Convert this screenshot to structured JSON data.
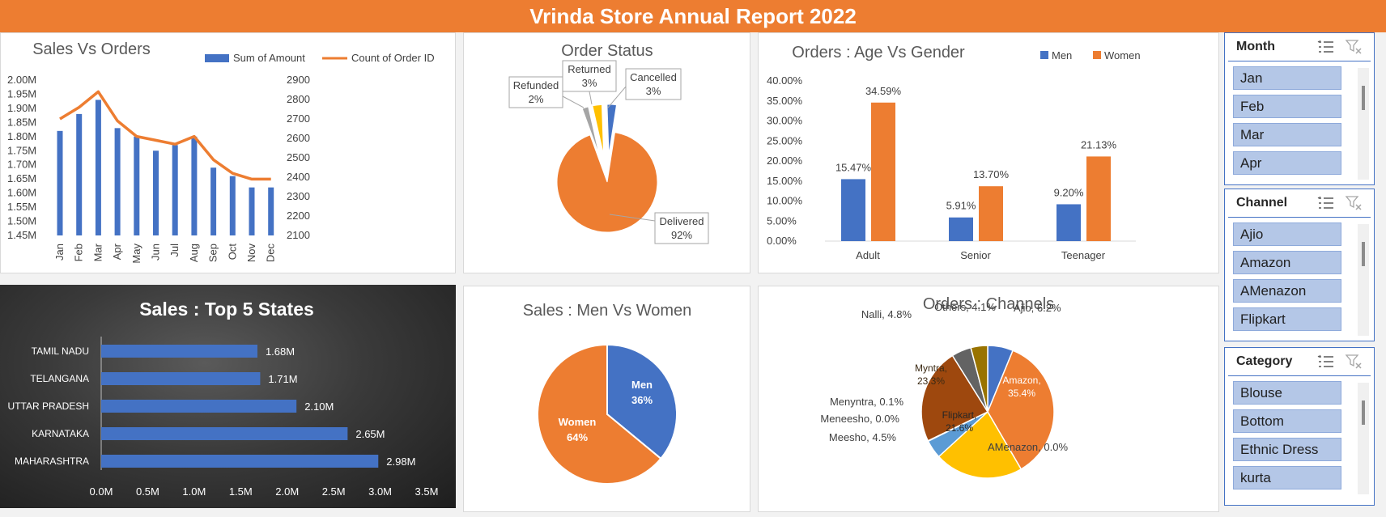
{
  "title": "Vrinda Store Annual Report 2022",
  "colors": {
    "orange": "#ed7d31",
    "blue": "#4472c4",
    "yellow": "#ffc000",
    "brown": "#9e480e",
    "lightblue": "#5b9bd5",
    "gray": "#636363",
    "darkyellow": "#997300"
  },
  "icons": {
    "multi_select": "multi-select-icon",
    "clear_filter": "clear-filter-icon"
  },
  "chart_data": [
    {
      "type": "bar",
      "title": "Sales Vs Orders",
      "categories": [
        "Jan",
        "Feb",
        "Mar",
        "Apr",
        "May",
        "Jun",
        "Jul",
        "Aug",
        "Sep",
        "Oct",
        "Nov",
        "Dec"
      ],
      "series": [
        {
          "name": "Sum of Amount",
          "type": "bar",
          "axis": "left",
          "values": [
            1.82,
            1.88,
            1.93,
            1.83,
            1.8,
            1.75,
            1.77,
            1.8,
            1.69,
            1.66,
            1.62,
            1.62
          ]
        },
        {
          "name": "Count of Order ID",
          "type": "line",
          "axis": "right",
          "values": [
            2700,
            2760,
            2840,
            2690,
            2610,
            2590,
            2570,
            2610,
            2490,
            2420,
            2390,
            2390
          ]
        }
      ],
      "y_left_ticks": [
        "2.00M",
        "1.95M",
        "1.90M",
        "1.85M",
        "1.80M",
        "1.75M",
        "1.70M",
        "1.65M",
        "1.60M",
        "1.55M",
        "1.50M",
        "1.45M"
      ],
      "y_right_ticks": [
        "2900",
        "2800",
        "2700",
        "2600",
        "2500",
        "2400",
        "2300",
        "2200",
        "2100"
      ],
      "ylim_left": [
        1.45,
        2.0
      ],
      "ylim_right": [
        2100,
        2900
      ]
    },
    {
      "type": "pie",
      "title": "Order Status",
      "slices": [
        {
          "label": "Delivered",
          "value": 92,
          "text": "92%"
        },
        {
          "label": "Refunded",
          "value": 2,
          "text": "2%"
        },
        {
          "label": "Returned",
          "value": 3,
          "text": "3%"
        },
        {
          "label": "Cancelled",
          "value": 3,
          "text": "3%"
        }
      ]
    },
    {
      "type": "bar",
      "title": "Orders : Age Vs Gender",
      "categories": [
        "Adult",
        "Senior",
        "Teenager"
      ],
      "series": [
        {
          "name": "Men",
          "values": [
            15.47,
            5.91,
            9.2
          ],
          "labels": [
            "15.47%",
            "5.91%",
            "9.20%"
          ]
        },
        {
          "name": "Women",
          "values": [
            34.59,
            13.7,
            21.13
          ],
          "labels": [
            "34.59%",
            "13.70%",
            "21.13%"
          ]
        }
      ],
      "y_ticks": [
        "40.00%",
        "35.00%",
        "30.00%",
        "25.00%",
        "20.00%",
        "15.00%",
        "10.00%",
        "5.00%",
        "0.00%"
      ],
      "ylim": [
        0,
        40
      ]
    },
    {
      "type": "bar",
      "orientation": "horizontal",
      "title": "Sales : Top 5 States",
      "categories": [
        "TAMIL NADU",
        "TELANGANA",
        "UTTAR PRADESH",
        "KARNATAKA",
        "MAHARASHTRA"
      ],
      "values": [
        1.68,
        1.71,
        2.1,
        2.65,
        2.98
      ],
      "labels": [
        "1.68M",
        "1.71M",
        "2.10M",
        "2.65M",
        "2.98M"
      ],
      "x_ticks": [
        "0.0M",
        "0.5M",
        "1.0M",
        "1.5M",
        "2.0M",
        "2.5M",
        "3.0M",
        "3.5M"
      ],
      "xlim": [
        0,
        3.5
      ]
    },
    {
      "type": "pie",
      "title": "Sales : Men Vs Women",
      "slices": [
        {
          "label": "Men",
          "value": 36,
          "text": "36%"
        },
        {
          "label": "Women",
          "value": 64,
          "text": "64%"
        }
      ]
    },
    {
      "type": "pie",
      "title": "Orders : Channels",
      "slices": [
        {
          "label": "Ajio",
          "value": 6.2,
          "text": "Ajio, 6.2%"
        },
        {
          "label": "Amazon",
          "value": 35.4,
          "text": "Amazon, 35.4%"
        },
        {
          "label": "AMenazon",
          "value": 0.0,
          "text": "AMenazon, 0.0%"
        },
        {
          "label": "Flipkart",
          "value": 21.6,
          "text": "Flipkart, 21.6%"
        },
        {
          "label": "Meesho",
          "value": 4.5,
          "text": "Meesho, 4.5%"
        },
        {
          "label": "Meneesho",
          "value": 0.0,
          "text": "Meneesho, 0.0%"
        },
        {
          "label": "Menyntra",
          "value": 0.1,
          "text": "Menyntra, 0.1%"
        },
        {
          "label": "Myntra",
          "value": 23.3,
          "text": "Myntra, 23.3%"
        },
        {
          "label": "Nalli",
          "value": 4.8,
          "text": "Nalli, 4.8%"
        },
        {
          "label": "Others",
          "value": 4.1,
          "text": "Others, 4.1%"
        }
      ]
    }
  ],
  "slicers": [
    {
      "title": "Month",
      "items": [
        "Jan",
        "Feb",
        "Mar",
        "Apr"
      ]
    },
    {
      "title": "Channel",
      "items": [
        "Ajio",
        "Amazon",
        "AMenazon",
        "Flipkart"
      ]
    },
    {
      "title": "Category",
      "items": [
        "Blouse",
        "Bottom",
        "Ethnic Dress",
        "kurta"
      ]
    }
  ]
}
